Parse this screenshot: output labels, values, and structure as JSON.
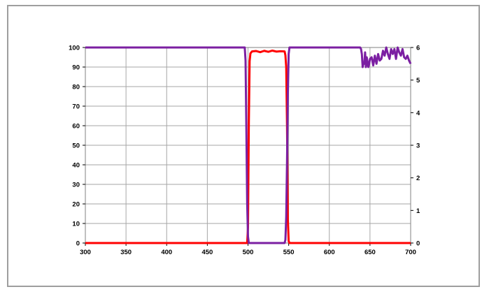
{
  "chart_data": {
    "type": "line",
    "title": "",
    "xlabel": "",
    "ylabel": "",
    "y2label": "",
    "xlim": [
      300,
      700
    ],
    "ylim": [
      0,
      100
    ],
    "y2lim": [
      0,
      6
    ],
    "x_ticks": [
      300,
      350,
      400,
      450,
      500,
      550,
      600,
      650,
      700
    ],
    "y_ticks": [
      0,
      10,
      20,
      30,
      40,
      50,
      60,
      70,
      80,
      90,
      100
    ],
    "y2_ticks": [
      0,
      1,
      2,
      3,
      4,
      5,
      6
    ],
    "grid": true,
    "legend": "none",
    "series": [
      {
        "color": "#ff0000",
        "axis": "left",
        "x": [
          300,
          400,
          499,
          500,
          501,
          502,
          503,
          505,
          510,
          515,
          520,
          525,
          530,
          535,
          540,
          545,
          546,
          547,
          548,
          549,
          550,
          551,
          600,
          700
        ],
        "y": [
          0,
          0,
          0,
          8,
          60,
          93,
          97,
          98,
          98.2,
          97.6,
          98.3,
          97.8,
          98.4,
          97.9,
          98.1,
          98,
          96,
          90,
          60,
          12,
          1,
          0,
          0,
          0
        ]
      },
      {
        "color": "#7b1fa2",
        "axis": "right",
        "x": [
          300,
          400,
          496,
          497,
          498,
          499,
          500,
          501,
          545,
          546,
          547,
          548,
          549,
          550,
          551,
          552,
          600,
          638,
          639,
          640,
          641,
          642,
          643,
          644,
          645,
          646,
          647,
          648,
          649,
          650,
          652,
          654,
          656,
          658,
          660,
          662,
          664,
          666,
          668,
          670,
          672,
          674,
          676,
          678,
          680,
          682,
          684,
          686,
          688,
          690,
          692,
          694,
          696,
          698,
          700
        ],
        "y": [
          6,
          6,
          6,
          5.6,
          3.5,
          1.2,
          0.2,
          0,
          0,
          0.1,
          0.8,
          2.5,
          4.6,
          5.8,
          6,
          6,
          6,
          6,
          5.95,
          5.8,
          5.4,
          5.5,
          5.5,
          5.85,
          5.4,
          5.7,
          5.55,
          5.4,
          5.5,
          5.65,
          5.7,
          5.45,
          5.75,
          5.5,
          5.8,
          5.6,
          5.65,
          5.9,
          5.75,
          6,
          5.8,
          5.65,
          5.95,
          5.8,
          5.95,
          5.65,
          6,
          5.85,
          5.75,
          5.95,
          5.7,
          5.65,
          5.75,
          5.6,
          5.5
        ]
      }
    ]
  }
}
